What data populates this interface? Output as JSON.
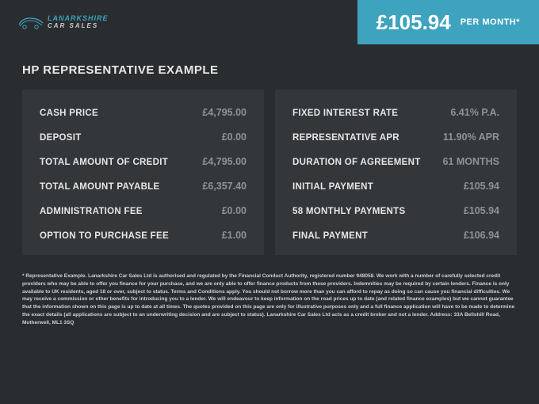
{
  "header": {
    "logo_line1": "LANARKSHIRE",
    "logo_line2": "CAR SALES",
    "price": "£105.94",
    "period": "PER MONTH*"
  },
  "title": "HP REPRESENTATIVE EXAMPLE",
  "left": [
    {
      "label": "CASH PRICE",
      "value": "£4,795.00"
    },
    {
      "label": "DEPOSIT",
      "value": "£0.00"
    },
    {
      "label": "TOTAL AMOUNT OF CREDIT",
      "value": "£4,795.00"
    },
    {
      "label": "TOTAL AMOUNT PAYABLE",
      "value": "£6,357.40"
    },
    {
      "label": "ADMINISTRATION FEE",
      "value": "£0.00"
    },
    {
      "label": "OPTION TO PURCHASE FEE",
      "value": "£1.00"
    }
  ],
  "right": [
    {
      "label": "FIXED INTEREST RATE",
      "value": "6.41% P.A."
    },
    {
      "label": "REPRESENTATIVE APR",
      "value": "11.90% APR"
    },
    {
      "label": "DURATION OF AGREEMENT",
      "value": "61 MONTHS"
    },
    {
      "label": "INITIAL PAYMENT",
      "value": "£105.94"
    },
    {
      "label": "58 MONTHLY PAYMENTS",
      "value": "£105.94"
    },
    {
      "label": "FINAL PAYMENT",
      "value": "£106.94"
    }
  ],
  "disclaimer": "* Representative Example. Lanarkshire Car Sales Ltd is authorised and regulated by the Financial Conduct Authority, registered number 948058. We work with a number of carefully selected credit providers who may be able to offer you finance for your purchase, and we are only able to offer finance products from these providers. Indemnities may be required by certain lenders. Finance is only available to UK residents, aged 18 or over, subject to status. Terms and Conditions apply. You should not borrow more than you can afford to repay as doing so can cause you financial difficulties. We may receive a commission or other benefits for introducing you to a lender. We will endeavour to keep information on the road prices up to date (and related finance examples) but we cannot guarantee that the information shown on this page is up to date at all times. The quotes provided on this page are only for illustrative purposes only and a full finance application will have to be made to determine the exact details (all applications are subject to an underwriting decision and are subject to status). Lanarkshire Car Sales Ltd acts as a credit broker and not a lender. Address: 33A Bellshill Road, Motherwell, ML1 3SQ",
  "colors": {
    "bg": "#2a2d30",
    "card_bg": "#34373a",
    "accent": "#3ea3bf",
    "label": "#e6e6e6",
    "value": "#8e9296"
  }
}
